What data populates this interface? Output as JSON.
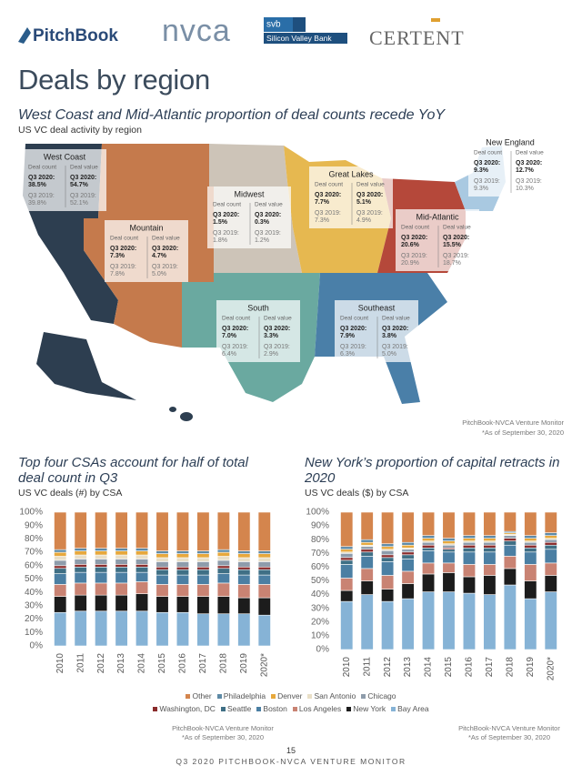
{
  "header": {
    "logos": [
      "PitchBook",
      "nvca",
      "svb",
      "Silicon Valley Bank",
      "CERTENT"
    ],
    "title": "Deals by region"
  },
  "map": {
    "title": "West Coast and Mid-Atlantic proportion of deal counts recede YoY",
    "subtitle": "US VC deal activity by region",
    "labels": {
      "count": "Deal count",
      "value": "Deal value",
      "current": "Q3 2020:",
      "prior": "Q3 2019:"
    },
    "regions": [
      {
        "name": "West Coast",
        "current": [
          "38.5%",
          "54.7%"
        ],
        "prior": [
          "39.8%",
          "52.1%"
        ]
      },
      {
        "name": "Mountain",
        "current": [
          "7.3%",
          "4.7%"
        ],
        "prior": [
          "7.8%",
          "5.0%"
        ]
      },
      {
        "name": "Midwest",
        "current": [
          "1.5%",
          "0.3%"
        ],
        "prior": [
          "1.8%",
          "1.2%"
        ]
      },
      {
        "name": "Great Lakes",
        "current": [
          "7.7%",
          "5.1%"
        ],
        "prior": [
          "7.3%",
          "4.9%"
        ]
      },
      {
        "name": "New England",
        "current": [
          "9.3%",
          "12.7%"
        ],
        "prior": [
          "9.3%",
          "10.3%"
        ]
      },
      {
        "name": "Mid-Atlantic",
        "current": [
          "20.6%",
          "15.5%"
        ],
        "prior": [
          "20.9%",
          "18.7%"
        ]
      },
      {
        "name": "South",
        "current": [
          "7.0%",
          "3.3%"
        ],
        "prior": [
          "6.4%",
          "2.9%"
        ]
      },
      {
        "name": "Southeast",
        "current": [
          "7.9%",
          "3.8%"
        ],
        "prior": [
          "6.3%",
          "5.0%"
        ]
      }
    ],
    "source": "PitchBook-NVCA Venture Monitor",
    "note": "*As of September 30, 2020"
  },
  "chart_data": [
    {
      "type": "bar",
      "stacked": true,
      "title": "Top four CSAs account for half of total deal count in Q3",
      "subtitle": "US VC deals (#) by CSA",
      "categories": [
        "2010",
        "2011",
        "2012",
        "2013",
        "2014",
        "2015",
        "2016",
        "2017",
        "2018",
        "2019",
        "2020*"
      ],
      "series": [
        {
          "name": "Bay Area",
          "color": "#86b3d6",
          "values": [
            25,
            26,
            26,
            26,
            26,
            25,
            25,
            24,
            24,
            24,
            23
          ]
        },
        {
          "name": "New York",
          "color": "#1c1c1c",
          "values": [
            12,
            12,
            12,
            12,
            13,
            12,
            12,
            13,
            13,
            12,
            13
          ]
        },
        {
          "name": "Los Angeles",
          "color": "#c98373",
          "values": [
            9,
            9,
            9,
            9,
            9,
            9,
            9,
            9,
            10,
            10,
            10
          ]
        },
        {
          "name": "Boston",
          "color": "#4b7fa3",
          "values": [
            8,
            8,
            8,
            8,
            7,
            7,
            7,
            7,
            7,
            7,
            7
          ]
        },
        {
          "name": "Seattle",
          "color": "#3f6f85",
          "values": [
            4,
            4,
            4,
            4,
            4,
            4,
            4,
            4,
            4,
            4,
            4
          ]
        },
        {
          "name": "Washington, DC",
          "color": "#8a2b2b",
          "values": [
            2,
            2,
            2,
            2,
            2,
            2,
            2,
            2,
            2,
            2,
            2
          ]
        },
        {
          "name": "Chicago",
          "color": "#8e9cab",
          "values": [
            4,
            4,
            4,
            4,
            4,
            4,
            4,
            4,
            4,
            4,
            4
          ]
        },
        {
          "name": "San Antonio",
          "color": "#e9dfc7",
          "values": [
            3,
            3,
            3,
            3,
            3,
            3,
            3,
            3,
            3,
            3,
            3
          ]
        },
        {
          "name": "Denver",
          "color": "#e7a83c",
          "values": [
            3,
            3,
            3,
            3,
            3,
            3,
            3,
            3,
            3,
            3,
            3
          ]
        },
        {
          "name": "Philadelphia",
          "color": "#5e8aa6",
          "values": [
            2,
            2,
            2,
            2,
            2,
            2,
            2,
            2,
            2,
            2,
            2
          ]
        },
        {
          "name": "Other",
          "color": "#d4854d",
          "values": [
            28,
            27,
            27,
            27,
            27,
            29,
            29,
            29,
            28,
            29,
            29
          ]
        }
      ],
      "ylim": [
        0,
        100
      ],
      "yticks": [
        {
          "value": 0,
          "label": "0%"
        },
        {
          "value": 10,
          "label": "10%"
        },
        {
          "value": 20,
          "label": "20%"
        },
        {
          "value": 30,
          "label": "30%"
        },
        {
          "value": 40,
          "label": "40%"
        },
        {
          "value": 50,
          "label": "50%"
        },
        {
          "value": 60,
          "label": "60%"
        },
        {
          "value": 70,
          "label": "70%"
        },
        {
          "value": 80,
          "label": "80%"
        },
        {
          "value": 90,
          "label": "90%"
        },
        {
          "value": 100,
          "label": "100%"
        }
      ],
      "source": "PitchBook-NVCA Venture Monitor",
      "note": "*As of September 30, 2020"
    },
    {
      "type": "bar",
      "stacked": true,
      "title": "New York’s proportion of capital retracts in 2020",
      "subtitle": "US VC deals ($) by CSA",
      "categories": [
        "2010",
        "2011",
        "2012",
        "2013",
        "2014",
        "2015",
        "2016",
        "2017",
        "2018",
        "2019",
        "2020*"
      ],
      "series": [
        {
          "name": "Bay Area",
          "color": "#86b3d6",
          "values": [
            35,
            40,
            35,
            37,
            42,
            42,
            41,
            40,
            47,
            37,
            42
          ]
        },
        {
          "name": "New York",
          "color": "#1c1c1c",
          "values": [
            8,
            10,
            9,
            11,
            13,
            14,
            12,
            14,
            12,
            13,
            12
          ]
        },
        {
          "name": "Los Angeles",
          "color": "#c98373",
          "values": [
            9,
            9,
            10,
            9,
            8,
            7,
            9,
            8,
            9,
            12,
            9
          ]
        },
        {
          "name": "Boston",
          "color": "#4b7fa3",
          "values": [
            10,
            9,
            10,
            9,
            9,
            8,
            9,
            9,
            8,
            9,
            10
          ]
        },
        {
          "name": "Seattle",
          "color": "#3f6f85",
          "values": [
            3,
            3,
            3,
            3,
            2,
            2,
            3,
            3,
            3,
            3,
            3
          ]
        },
        {
          "name": "Washington, DC",
          "color": "#8a2b2b",
          "values": [
            2,
            2,
            2,
            2,
            2,
            1,
            2,
            2,
            2,
            2,
            2
          ]
        },
        {
          "name": "Chicago",
          "color": "#8e9cab",
          "values": [
            3,
            2,
            3,
            2,
            2,
            2,
            2,
            2,
            2,
            2,
            2
          ]
        },
        {
          "name": "San Antonio",
          "color": "#e9dfc7",
          "values": [
            1,
            1,
            1,
            1,
            1,
            1,
            1,
            1,
            1,
            1,
            1
          ]
        },
        {
          "name": "Denver",
          "color": "#e7a83c",
          "values": [
            2,
            2,
            2,
            2,
            2,
            2,
            2,
            2,
            1,
            2,
            2
          ]
        },
        {
          "name": "Philadelphia",
          "color": "#5e8aa6",
          "values": [
            2,
            2,
            2,
            2,
            2,
            2,
            2,
            2,
            1,
            2,
            2
          ]
        },
        {
          "name": "Other",
          "color": "#d4854d",
          "values": [
            25,
            20,
            23,
            22,
            17,
            19,
            17,
            17,
            14,
            17,
            15
          ]
        }
      ],
      "ylim": [
        0,
        100
      ],
      "yticks": [
        {
          "value": 0,
          "label": "0%"
        },
        {
          "value": 10,
          "label": "10%"
        },
        {
          "value": 20,
          "label": "20%"
        },
        {
          "value": 30,
          "label": "30%"
        },
        {
          "value": 40,
          "label": "40%"
        },
        {
          "value": 50,
          "label": "50%"
        },
        {
          "value": 60,
          "label": "60%"
        },
        {
          "value": 70,
          "label": "70%"
        },
        {
          "value": 80,
          "label": "80%"
        },
        {
          "value": 90,
          "label": "90%"
        },
        {
          "value": 100,
          "label": "100%"
        }
      ],
      "source": "PitchBook-NVCA Venture Monitor",
      "note": "*As of September 30, 2020"
    }
  ],
  "footer": {
    "page": "15",
    "text": "Q3 2020 PITCHBOOK-NVCA VENTURE MONITOR"
  }
}
